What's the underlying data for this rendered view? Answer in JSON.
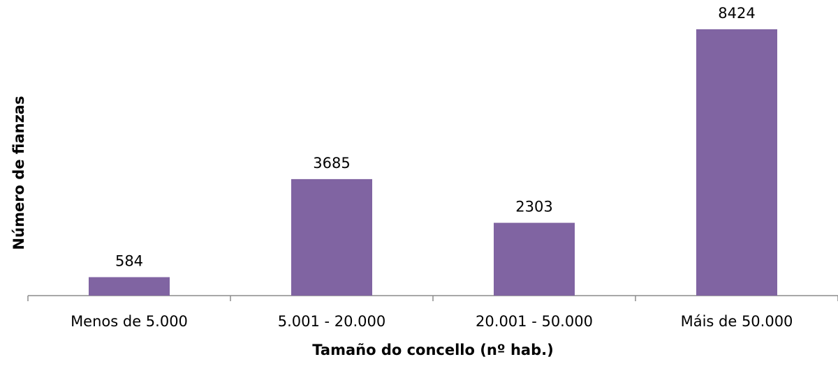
{
  "chart_data": {
    "type": "bar",
    "categories": [
      "Menos de 5.000",
      "5.001 - 20.000",
      "20.001 - 50.000",
      "Máis de 50.000"
    ],
    "values": [
      584,
      3685,
      2303,
      8424
    ],
    "color": "#8064a2",
    "x_label": "Tamaño do concello (nº hab.)",
    "y_label": "Número de fianzas"
  }
}
